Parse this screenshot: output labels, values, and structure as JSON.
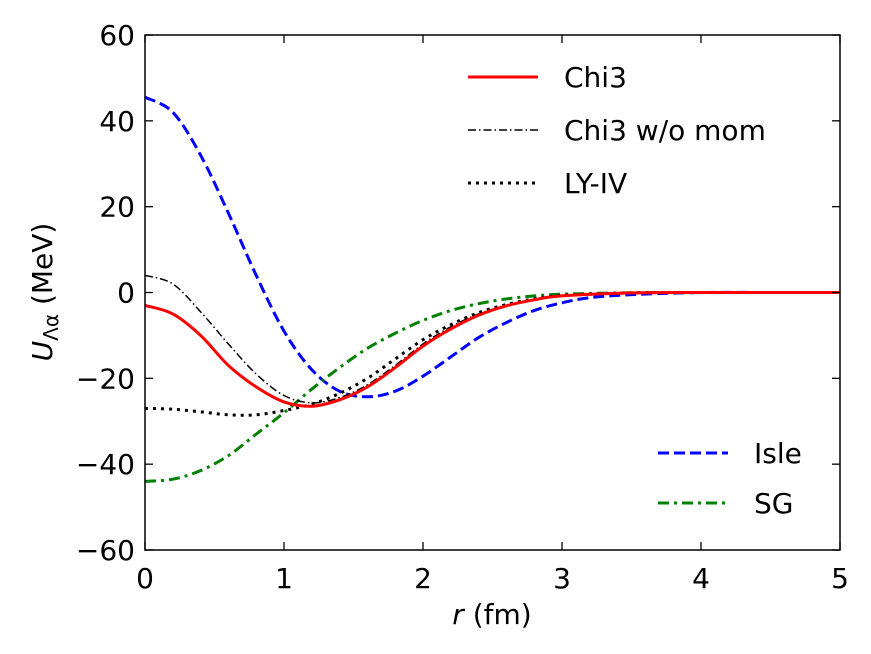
{
  "chart_data": {
    "type": "line",
    "title": "",
    "xlabel": "r (fm)",
    "xlabel_var": "r",
    "xlabel_unit": "(fm)",
    "ylabel": "U_Λα (MeV)",
    "ylabel_var": "U",
    "ylabel_sub": "Λα",
    "ylabel_unit": "(MeV)",
    "xlim": [
      0,
      5
    ],
    "ylim": [
      -60,
      60
    ],
    "xticks": [
      0,
      1,
      2,
      3,
      4,
      5
    ],
    "xtick_labels": [
      "0",
      "1",
      "2",
      "3",
      "4",
      "5"
    ],
    "yticks": [
      -60,
      -40,
      -20,
      0,
      20,
      40,
      60
    ],
    "ytick_labels": [
      "−60",
      "−40",
      "−20",
      "0",
      "20",
      "40",
      "60"
    ],
    "grid": false,
    "legends": [
      {
        "placement": "top-right",
        "entries": [
          "Chi3",
          "Chi3 w/o mom",
          "LY-IV"
        ]
      },
      {
        "placement": "bottom-right",
        "entries": [
          "Isle",
          "SG"
        ]
      }
    ],
    "series": [
      {
        "name": "Chi3",
        "color": "#ff0000",
        "style": "solid",
        "width": 3,
        "x": [
          0,
          0.2,
          0.4,
          0.6,
          0.8,
          1.0,
          1.2,
          1.4,
          1.6,
          1.8,
          2.0,
          2.2,
          2.4,
          2.6,
          2.8,
          3.0,
          3.5,
          4.0,
          5.0
        ],
        "y": [
          -3,
          -5,
          -10,
          -17,
          -22,
          -25.5,
          -26.5,
          -25,
          -22,
          -17.5,
          -12.5,
          -8.5,
          -5.3,
          -3.1,
          -1.7,
          -0.8,
          -0.1,
          0,
          0
        ]
      },
      {
        "name": "Chi3 w/o mom",
        "color": "#000000",
        "style": "dashdot",
        "width": 1.5,
        "x": [
          0,
          0.2,
          0.4,
          0.6,
          0.8,
          1.0,
          1.2,
          1.4,
          1.6,
          1.8,
          2.0,
          2.2,
          2.4,
          2.6,
          2.8,
          3.0,
          3.5,
          4.0,
          5.0
        ],
        "y": [
          4,
          2,
          -4.5,
          -12,
          -19,
          -24,
          -25.7,
          -24.5,
          -21.5,
          -17,
          -12,
          -8,
          -5,
          -3,
          -1.6,
          -0.8,
          -0.1,
          0,
          0
        ]
      },
      {
        "name": "LY-IV",
        "color": "#000000",
        "style": "dotted",
        "width": 3,
        "x": [
          0,
          0.2,
          0.4,
          0.6,
          0.8,
          1.0,
          1.2,
          1.4,
          1.6,
          1.8,
          2.0,
          2.2,
          2.4,
          2.6,
          2.8,
          3.0,
          3.5,
          4.0,
          5.0
        ],
        "y": [
          -27,
          -27.2,
          -27.8,
          -28.5,
          -28.5,
          -27.5,
          -26,
          -23.5,
          -20,
          -15.5,
          -11,
          -7.5,
          -4.7,
          -2.8,
          -1.5,
          -0.7,
          -0.1,
          0,
          0
        ]
      },
      {
        "name": "Isle",
        "color": "#0000ff",
        "style": "dashed",
        "width": 3,
        "x": [
          0,
          0.2,
          0.4,
          0.6,
          0.8,
          1.0,
          1.2,
          1.4,
          1.6,
          1.8,
          2.0,
          2.2,
          2.4,
          2.6,
          2.8,
          3.0,
          3.2,
          3.5,
          4.0,
          4.5,
          5.0
        ],
        "y": [
          45.5,
          42,
          32,
          18.5,
          4,
          -9,
          -18,
          -23,
          -24.3,
          -23,
          -19.5,
          -15,
          -10.5,
          -7,
          -4.2,
          -2.4,
          -1.2,
          -0.5,
          0,
          0,
          0
        ]
      },
      {
        "name": "SG",
        "color": "#008000",
        "style": "dashdot",
        "width": 3,
        "x": [
          0,
          0.2,
          0.4,
          0.6,
          0.8,
          1.0,
          1.2,
          1.4,
          1.6,
          1.8,
          2.0,
          2.2,
          2.4,
          2.6,
          2.8,
          3.0,
          3.5,
          4.0,
          5.0
        ],
        "y": [
          -44,
          -43.5,
          -41.5,
          -38,
          -33,
          -28,
          -22.5,
          -17.5,
          -13,
          -9.5,
          -6.5,
          -4.2,
          -2.6,
          -1.5,
          -0.8,
          -0.4,
          -0.05,
          0,
          0
        ]
      }
    ]
  }
}
